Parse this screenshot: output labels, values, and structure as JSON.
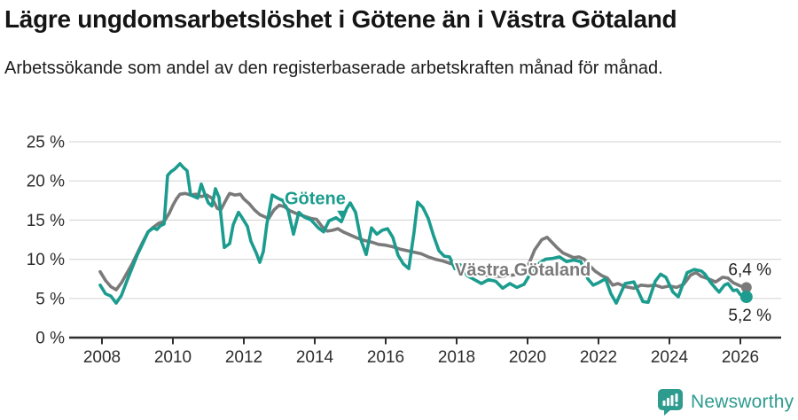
{
  "header": {
    "title": "Lägre ungdomsarbetslöshet i Götene än i Västra Götaland",
    "subtitle": "Arbetssökande som andel av den registerbaserade arbetskraften månad för månad."
  },
  "chart_data": {
    "type": "line",
    "title": "Lägre ungdomsarbetslöshet i Götene än i Västra Götaland",
    "subtitle": "Arbetssökande som andel av den registerbaserade arbetskraften månad för månad.",
    "unit": "percent",
    "grid": true,
    "xlim": [
      2007.9,
      2026.6
    ],
    "ylim": [
      0,
      25
    ],
    "x_ticks": [
      2008,
      2010,
      2012,
      2014,
      2016,
      2018,
      2020,
      2022,
      2024,
      2026
    ],
    "x_tick_labels": [
      "2008",
      "2010",
      "2012",
      "2014",
      "2016",
      "2018",
      "2020",
      "2022",
      "2024",
      "2026"
    ],
    "y_ticks": [
      0,
      5,
      10,
      15,
      20,
      25
    ],
    "y_tick_labels": [
      "0 %",
      "5 %",
      "10 %",
      "15 %",
      "20 %",
      "25 %"
    ],
    "colors": {
      "gotene": "#1b9c8e",
      "vastra_gotaland": "#7a7a7a",
      "grid": "#d9d9d9",
      "axis": "#2e2e2e",
      "value_label": "#222222"
    },
    "series": [
      {
        "name": "Västra Götaland",
        "color": "#7a7a7a",
        "end_label": "6,4 %",
        "end_value": 6.4,
        "points": [
          [
            2007.95,
            8.4
          ],
          [
            2008.1,
            7.3
          ],
          [
            2008.25,
            6.5
          ],
          [
            2008.4,
            6.1
          ],
          [
            2008.55,
            7.0
          ],
          [
            2008.7,
            8.2
          ],
          [
            2008.85,
            9.4
          ],
          [
            2009.0,
            10.8
          ],
          [
            2009.15,
            12.2
          ],
          [
            2009.3,
            13.5
          ],
          [
            2009.45,
            14.1
          ],
          [
            2009.6,
            14.6
          ],
          [
            2009.75,
            14.8
          ],
          [
            2009.9,
            15.9
          ],
          [
            2010.0,
            16.9
          ],
          [
            2010.1,
            17.7
          ],
          [
            2010.2,
            18.3
          ],
          [
            2010.35,
            18.4
          ],
          [
            2010.5,
            18.2
          ],
          [
            2010.65,
            18.3
          ],
          [
            2010.8,
            18.0
          ],
          [
            2010.95,
            18.2
          ],
          [
            2011.1,
            17.8
          ],
          [
            2011.25,
            16.5
          ],
          [
            2011.35,
            16.3
          ],
          [
            2011.5,
            17.6
          ],
          [
            2011.6,
            18.4
          ],
          [
            2011.75,
            18.2
          ],
          [
            2011.9,
            18.3
          ],
          [
            2012.0,
            17.7
          ],
          [
            2012.15,
            17.1
          ],
          [
            2012.3,
            16.3
          ],
          [
            2012.45,
            15.7
          ],
          [
            2012.6,
            15.4
          ],
          [
            2012.7,
            15.2
          ],
          [
            2012.85,
            16.3
          ],
          [
            2013.0,
            16.9
          ],
          [
            2013.15,
            16.7
          ],
          [
            2013.3,
            16.2
          ],
          [
            2013.5,
            15.8
          ],
          [
            2013.7,
            15.5
          ],
          [
            2013.9,
            15.2
          ],
          [
            2014.05,
            15.1
          ],
          [
            2014.2,
            14.2
          ],
          [
            2014.35,
            13.6
          ],
          [
            2014.5,
            13.7
          ],
          [
            2014.65,
            13.9
          ],
          [
            2014.8,
            13.5
          ],
          [
            2015.0,
            13.1
          ],
          [
            2015.2,
            12.7
          ],
          [
            2015.4,
            12.4
          ],
          [
            2015.6,
            12.2
          ],
          [
            2015.8,
            11.9
          ],
          [
            2016.0,
            11.8
          ],
          [
            2016.2,
            11.6
          ],
          [
            2016.4,
            11.3
          ],
          [
            2016.6,
            11.1
          ],
          [
            2016.8,
            10.9
          ],
          [
            2017.0,
            10.7
          ],
          [
            2017.2,
            10.3
          ],
          [
            2017.4,
            10.0
          ],
          [
            2017.6,
            9.8
          ],
          [
            2017.8,
            9.5
          ],
          [
            2018.0,
            9.2
          ],
          [
            2018.2,
            8.8
          ],
          [
            2018.4,
            8.5
          ],
          [
            2018.6,
            8.2
          ],
          [
            2018.8,
            8.0
          ],
          [
            2019.0,
            7.9
          ],
          [
            2019.2,
            7.8
          ],
          [
            2019.4,
            7.9
          ],
          [
            2019.6,
            8.0
          ],
          [
            2019.8,
            8.3
          ],
          [
            2020.0,
            9.0
          ],
          [
            2020.2,
            11.2
          ],
          [
            2020.4,
            12.5
          ],
          [
            2020.55,
            12.8
          ],
          [
            2020.7,
            12.1
          ],
          [
            2020.85,
            11.4
          ],
          [
            2021.0,
            10.8
          ],
          [
            2021.15,
            10.5
          ],
          [
            2021.3,
            10.2
          ],
          [
            2021.45,
            10.3
          ],
          [
            2021.6,
            10.0
          ],
          [
            2021.75,
            9.2
          ],
          [
            2021.9,
            8.5
          ],
          [
            2022.1,
            7.9
          ],
          [
            2022.25,
            7.6
          ],
          [
            2022.4,
            6.7
          ],
          [
            2022.55,
            6.9
          ],
          [
            2022.75,
            6.5
          ],
          [
            2023.0,
            6.3
          ],
          [
            2023.2,
            6.7
          ],
          [
            2023.4,
            6.6
          ],
          [
            2023.6,
            6.7
          ],
          [
            2023.8,
            6.4
          ],
          [
            2024.0,
            6.6
          ],
          [
            2024.2,
            6.4
          ],
          [
            2024.4,
            6.8
          ],
          [
            2024.6,
            8.0
          ],
          [
            2024.75,
            8.3
          ],
          [
            2024.9,
            7.8
          ],
          [
            2025.1,
            7.5
          ],
          [
            2025.3,
            7.1
          ],
          [
            2025.5,
            7.7
          ],
          [
            2025.65,
            7.6
          ],
          [
            2025.8,
            7.0
          ],
          [
            2025.95,
            6.7
          ],
          [
            2026.05,
            6.5
          ],
          [
            2026.17,
            6.4
          ]
        ]
      },
      {
        "name": "Götene",
        "color": "#1b9c8e",
        "end_label": "5,2 %",
        "end_value": 5.2,
        "points": [
          [
            2007.95,
            6.7
          ],
          [
            2008.1,
            5.6
          ],
          [
            2008.25,
            5.3
          ],
          [
            2008.4,
            4.4
          ],
          [
            2008.55,
            5.4
          ],
          [
            2008.7,
            7.2
          ],
          [
            2008.85,
            8.9
          ],
          [
            2009.0,
            10.6
          ],
          [
            2009.15,
            12.0
          ],
          [
            2009.3,
            13.5
          ],
          [
            2009.45,
            14.0
          ],
          [
            2009.55,
            13.8
          ],
          [
            2009.65,
            14.3
          ],
          [
            2009.75,
            14.5
          ],
          [
            2009.85,
            20.7
          ],
          [
            2009.95,
            21.2
          ],
          [
            2010.05,
            21.5
          ],
          [
            2010.2,
            22.2
          ],
          [
            2010.3,
            21.7
          ],
          [
            2010.4,
            21.3
          ],
          [
            2010.5,
            18.2
          ],
          [
            2010.6,
            18.0
          ],
          [
            2010.7,
            17.8
          ],
          [
            2010.8,
            19.6
          ],
          [
            2010.9,
            18.3
          ],
          [
            2011.0,
            17.2
          ],
          [
            2011.1,
            16.8
          ],
          [
            2011.2,
            19.0
          ],
          [
            2011.3,
            17.9
          ],
          [
            2011.45,
            11.5
          ],
          [
            2011.6,
            12.0
          ],
          [
            2011.7,
            14.4
          ],
          [
            2011.85,
            16.0
          ],
          [
            2011.95,
            15.3
          ],
          [
            2012.1,
            14.2
          ],
          [
            2012.2,
            12.3
          ],
          [
            2012.35,
            10.8
          ],
          [
            2012.45,
            9.6
          ],
          [
            2012.55,
            11.0
          ],
          [
            2012.65,
            14.5
          ],
          [
            2012.8,
            18.2
          ],
          [
            2012.95,
            17.8
          ],
          [
            2013.1,
            17.5
          ],
          [
            2013.25,
            16.2
          ],
          [
            2013.4,
            13.2
          ],
          [
            2013.55,
            16.0
          ],
          [
            2013.7,
            15.4
          ],
          [
            2013.9,
            15.0
          ],
          [
            2014.1,
            14.0
          ],
          [
            2014.25,
            13.5
          ],
          [
            2014.4,
            14.9
          ],
          [
            2014.6,
            15.3
          ],
          [
            2014.75,
            14.8
          ],
          [
            2014.9,
            16.5
          ],
          [
            2015.0,
            17.2
          ],
          [
            2015.15,
            16.0
          ],
          [
            2015.3,
            12.5
          ],
          [
            2015.45,
            10.6
          ],
          [
            2015.6,
            14.0
          ],
          [
            2015.75,
            13.2
          ],
          [
            2015.9,
            13.7
          ],
          [
            2016.05,
            13.9
          ],
          [
            2016.2,
            12.8
          ],
          [
            2016.35,
            10.5
          ],
          [
            2016.5,
            9.4
          ],
          [
            2016.65,
            8.8
          ],
          [
            2016.8,
            13.5
          ],
          [
            2016.9,
            17.3
          ],
          [
            2017.05,
            16.6
          ],
          [
            2017.2,
            15.2
          ],
          [
            2017.35,
            13.0
          ],
          [
            2017.5,
            11.1
          ],
          [
            2017.65,
            10.4
          ],
          [
            2017.8,
            10.3
          ],
          [
            2017.95,
            8.8
          ],
          [
            2018.1,
            9.3
          ],
          [
            2018.3,
            7.9
          ],
          [
            2018.5,
            7.4
          ],
          [
            2018.7,
            6.9
          ],
          [
            2018.9,
            7.4
          ],
          [
            2019.1,
            7.2
          ],
          [
            2019.3,
            6.3
          ],
          [
            2019.5,
            6.9
          ],
          [
            2019.7,
            6.4
          ],
          [
            2019.9,
            6.8
          ],
          [
            2020.1,
            8.3
          ],
          [
            2020.3,
            9.4
          ],
          [
            2020.5,
            10.0
          ],
          [
            2020.7,
            10.1
          ],
          [
            2020.9,
            10.3
          ],
          [
            2021.1,
            9.7
          ],
          [
            2021.3,
            9.9
          ],
          [
            2021.5,
            9.7
          ],
          [
            2021.7,
            7.5
          ],
          [
            2021.85,
            6.7
          ],
          [
            2022.0,
            7.0
          ],
          [
            2022.2,
            7.5
          ],
          [
            2022.35,
            5.6
          ],
          [
            2022.5,
            4.4
          ],
          [
            2022.75,
            6.9
          ],
          [
            2023.0,
            7.1
          ],
          [
            2023.25,
            4.6
          ],
          [
            2023.4,
            4.5
          ],
          [
            2023.6,
            7.2
          ],
          [
            2023.75,
            8.1
          ],
          [
            2023.9,
            7.7
          ],
          [
            2024.1,
            5.8
          ],
          [
            2024.25,
            5.2
          ],
          [
            2024.5,
            8.3
          ],
          [
            2024.7,
            8.7
          ],
          [
            2024.9,
            8.5
          ],
          [
            2025.0,
            8.1
          ],
          [
            2025.15,
            7.1
          ],
          [
            2025.3,
            6.3
          ],
          [
            2025.4,
            5.8
          ],
          [
            2025.55,
            6.7
          ],
          [
            2025.65,
            6.9
          ],
          [
            2025.8,
            6.0
          ],
          [
            2025.9,
            6.1
          ],
          [
            2026.0,
            5.5
          ],
          [
            2026.17,
            5.2
          ]
        ]
      }
    ],
    "annotations": [
      {
        "series": "Götene",
        "label_x": 2013.15,
        "label_y": 17.0,
        "marker_x": 2014.78,
        "marker_y": 16.2
      },
      {
        "series": "Västra Götaland",
        "label_x": 2017.95,
        "label_y": 7.9
      }
    ],
    "legend_position": "inline-labels"
  },
  "footer": {
    "brand": "Newsworthy",
    "brand_color": "#2e9b8f"
  }
}
